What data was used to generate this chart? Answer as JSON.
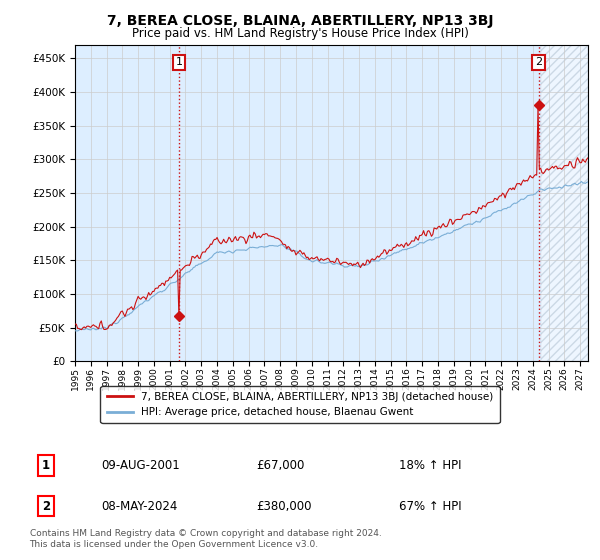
{
  "title": "7, BEREA CLOSE, BLAINA, ABERTILLERY, NP13 3BJ",
  "subtitle": "Price paid vs. HM Land Registry's House Price Index (HPI)",
  "legend_line1": "7, BEREA CLOSE, BLAINA, ABERTILLERY, NP13 3BJ (detached house)",
  "legend_line2": "HPI: Average price, detached house, Blaenau Gwent",
  "annotation1_label": "1",
  "annotation1_date": "09-AUG-2001",
  "annotation1_price": "£67,000",
  "annotation1_hpi": "18% ↑ HPI",
  "annotation1_year": 2001.6,
  "annotation1_value": 67000,
  "annotation2_label": "2",
  "annotation2_date": "08-MAY-2024",
  "annotation2_price": "£380,000",
  "annotation2_hpi": "67% ↑ HPI",
  "annotation2_year": 2024.37,
  "annotation2_value": 380000,
  "footnote": "Contains HM Land Registry data © Crown copyright and database right 2024.\nThis data is licensed under the Open Government Licence v3.0.",
  "hpi_color": "#7aaed6",
  "price_color": "#cc1111",
  "annotation_color": "#cc1111",
  "grid_color": "#cccccc",
  "chart_bg": "#ddeeff",
  "background_color": "#ffffff",
  "hatch_color": "#bbccdd",
  "ylim": [
    0,
    470000
  ],
  "yticks": [
    0,
    50000,
    100000,
    150000,
    200000,
    250000,
    300000,
    350000,
    400000,
    450000
  ],
  "xlim_start": 1995.0,
  "xlim_end": 2027.5,
  "hatch_start": 2024.5,
  "xticks": [
    1995,
    1996,
    1997,
    1998,
    1999,
    2000,
    2001,
    2002,
    2003,
    2004,
    2005,
    2006,
    2007,
    2008,
    2009,
    2010,
    2011,
    2012,
    2013,
    2014,
    2015,
    2016,
    2017,
    2018,
    2019,
    2020,
    2021,
    2022,
    2023,
    2024,
    2025,
    2026,
    2027
  ]
}
